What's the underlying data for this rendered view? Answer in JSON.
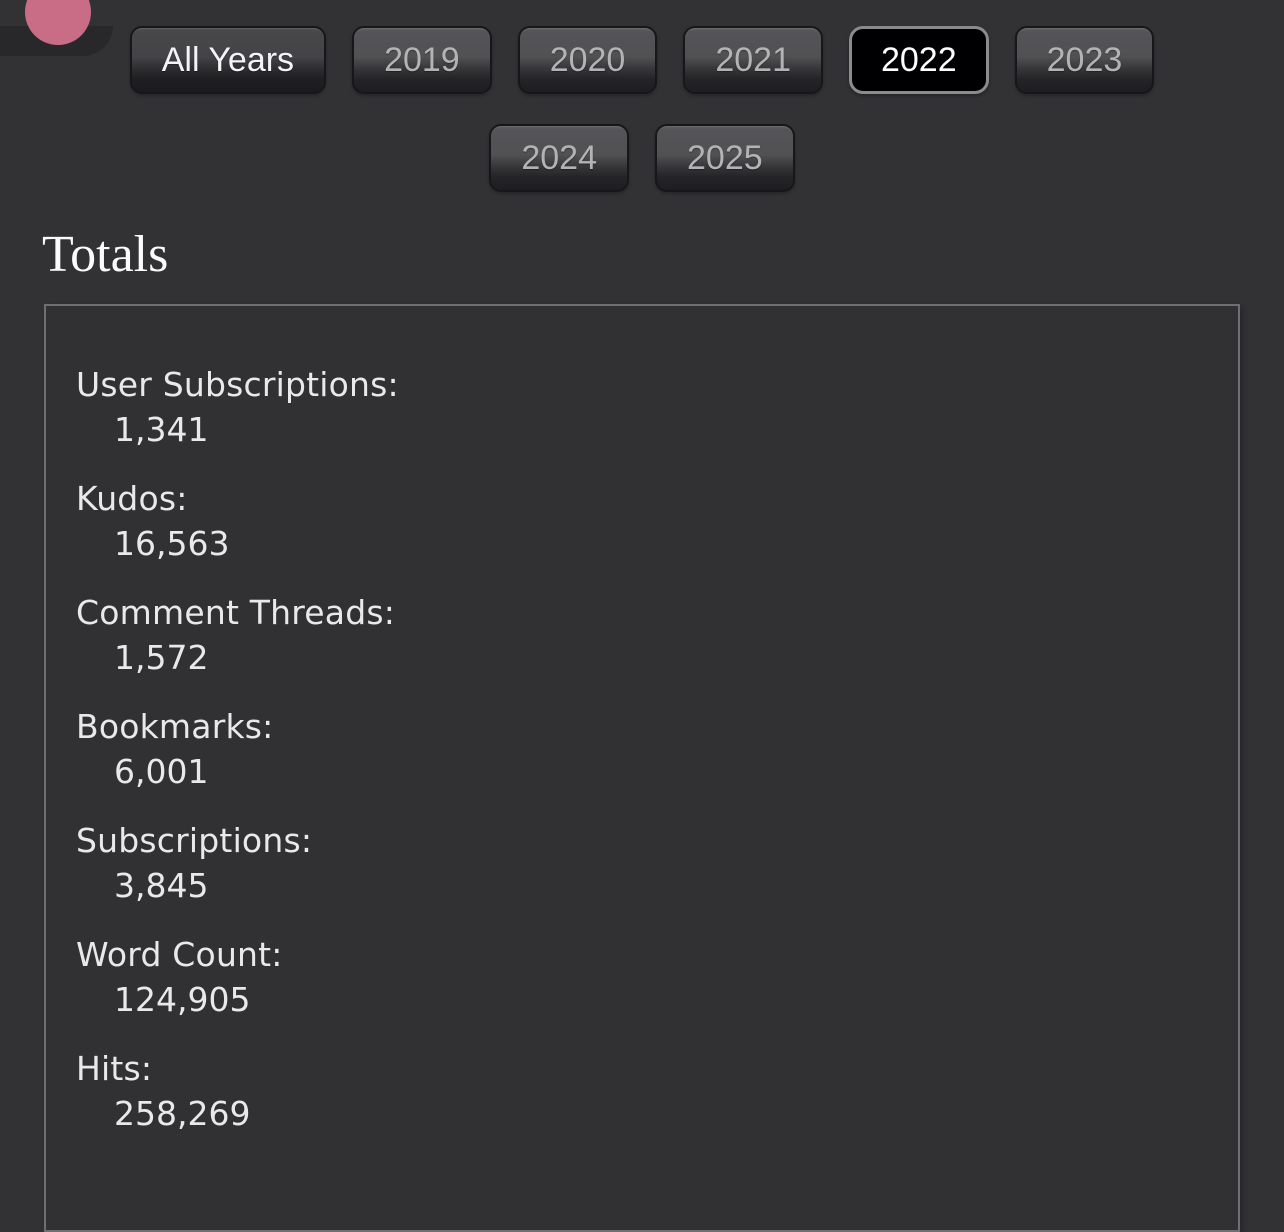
{
  "page": {
    "background_color": "#323235",
    "box_border_color": "#6f6f72",
    "selected_button_bg": "#000000",
    "accent_circle_color": "#c96d87"
  },
  "corner_widget": {
    "circle_color": "#c96d87"
  },
  "year_filter": {
    "buttons": [
      {
        "label": "All Years",
        "variant": "primary",
        "selected": false
      },
      {
        "label": "2019",
        "variant": "year",
        "selected": false
      },
      {
        "label": "2020",
        "variant": "year",
        "selected": false
      },
      {
        "label": "2021",
        "variant": "year",
        "selected": false
      },
      {
        "label": "2022",
        "variant": "year",
        "selected": true
      },
      {
        "label": "2023",
        "variant": "year",
        "selected": false
      },
      {
        "label": "2024",
        "variant": "year",
        "selected": false
      },
      {
        "label": "2025",
        "variant": "year",
        "selected": false
      }
    ]
  },
  "totals": {
    "heading": "Totals",
    "stats": [
      {
        "label": "User Subscriptions:",
        "value": "1,341"
      },
      {
        "label": "Kudos:",
        "value": "16,563"
      },
      {
        "label": "Comment Threads:",
        "value": "1,572"
      },
      {
        "label": "Bookmarks:",
        "value": "6,001"
      },
      {
        "label": "Subscriptions:",
        "value": "3,845"
      },
      {
        "label": "Word Count:",
        "value": "124,905"
      },
      {
        "label": "Hits:",
        "value": "258,269"
      }
    ]
  }
}
